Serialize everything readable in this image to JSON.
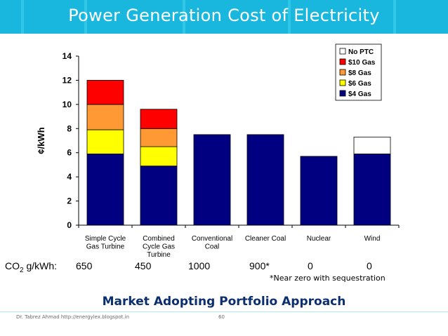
{
  "slide": {
    "title": "Power Generation Cost of Electricity",
    "subtitle": "Market Adopting Portfolio Approach",
    "footer_author": "Dr. Tabrez Ahmad http://energylex.blogspot.in",
    "page_number": "60"
  },
  "co2": {
    "label_prefix": "CO",
    "label_sub": "2",
    "label_suffix": " g/kWh:",
    "values": [
      "650",
      "450",
      "1000",
      "900*",
      "0",
      "0"
    ],
    "footnote": "*Near zero with sequestration"
  },
  "colors": {
    "band": "#19b7dd",
    "gas4": "#000080",
    "gas6": "#ffff00",
    "gas8": "#ff9933",
    "gas10": "#ff0000",
    "noptc": "#ffffff"
  },
  "chart_data": {
    "type": "bar",
    "stacked": true,
    "title": "",
    "xlabel": "",
    "ylabel": "¢/kWh",
    "ylim": [
      0,
      14
    ],
    "yticks": [
      0,
      2,
      4,
      6,
      8,
      10,
      12,
      14
    ],
    "categories": [
      [
        "Simple Cycle",
        "Gas Turbine"
      ],
      [
        "Combined",
        "Cycle Gas",
        "Turbine"
      ],
      [
        "Conventional",
        "Coal"
      ],
      [
        "Cleaner Coal"
      ],
      [
        "Nuclear"
      ],
      [
        "Wind"
      ]
    ],
    "legend_position": "top-right",
    "legend_order": [
      "No PTC",
      "$10 Gas",
      "$8 Gas",
      "$6 Gas",
      "$4 Gas"
    ],
    "series": [
      {
        "name": "$4 Gas",
        "color": "#000080",
        "values": [
          5.9,
          4.9,
          7.5,
          7.5,
          5.7,
          5.9
        ]
      },
      {
        "name": "$6 Gas",
        "color": "#ffff00",
        "values": [
          2.0,
          1.6,
          0,
          0,
          0,
          0
        ]
      },
      {
        "name": "$8 Gas",
        "color": "#ff9933",
        "values": [
          2.1,
          1.5,
          0,
          0,
          0,
          0
        ]
      },
      {
        "name": "$10 Gas",
        "color": "#ff0000",
        "values": [
          2.0,
          1.6,
          0,
          0,
          0,
          0
        ]
      },
      {
        "name": "No PTC",
        "color": "#ffffff",
        "values": [
          0,
          0,
          0,
          0,
          0,
          1.4
        ]
      }
    ]
  }
}
